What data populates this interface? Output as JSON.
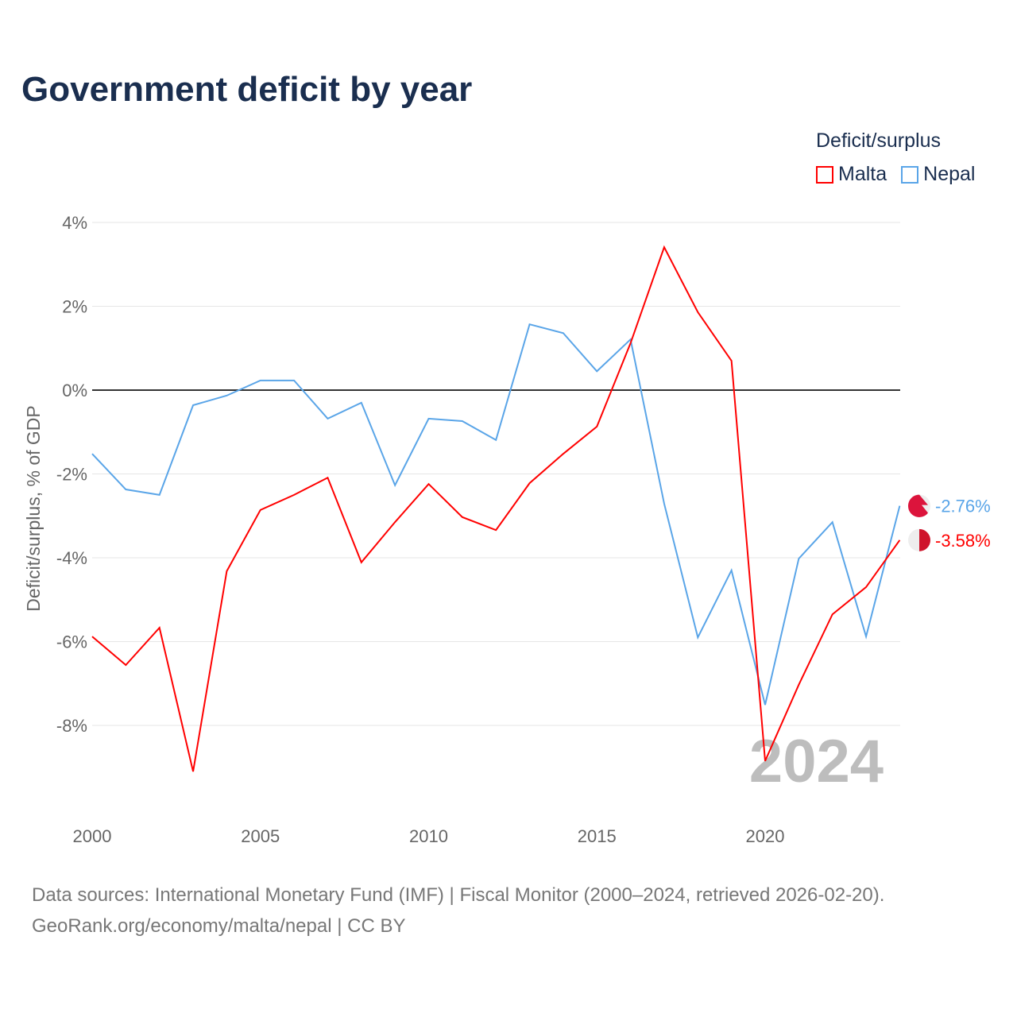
{
  "title": "Government deficit by year",
  "legend": {
    "title": "Deficit/surplus",
    "items": [
      {
        "name": "Malta",
        "color": "#ff0000"
      },
      {
        "name": "Nepal",
        "color": "#5aa5e8"
      }
    ]
  },
  "footer": {
    "line1": "Data sources: International Monetary Fund (IMF) | Fiscal Monitor (2000–2024, retrieved 2026-02-20).",
    "line2": "GeoRank.org/economy/malta/nepal | CC BY"
  },
  "chart_data": {
    "type": "line",
    "title": "Government deficit by year",
    "xlabel": "",
    "ylabel": "Deficit/surplus, % of GDP",
    "year_watermark": "2024",
    "x": [
      2000,
      2001,
      2002,
      2003,
      2004,
      2005,
      2006,
      2007,
      2008,
      2009,
      2010,
      2011,
      2012,
      2013,
      2014,
      2015,
      2016,
      2017,
      2018,
      2019,
      2020,
      2021,
      2022,
      2023,
      2024
    ],
    "xticks": [
      2000,
      2005,
      2010,
      2015,
      2020
    ],
    "yticks": [
      4,
      2,
      0,
      -2,
      -4,
      -6,
      -8
    ],
    "ytick_labels": [
      "4%",
      "2%",
      "0%",
      "-2%",
      "-4%",
      "-6%",
      "-8%"
    ],
    "ylim": [
      -9.8,
      4.4
    ],
    "xlim": [
      2000,
      2024
    ],
    "grid": true,
    "legend_position": "top-right",
    "series": [
      {
        "name": "Malta",
        "color": "#ff0000",
        "end_label": "-3.58%",
        "values": [
          -5.88,
          -6.56,
          -5.67,
          -9.1,
          -4.32,
          -2.86,
          -2.5,
          -2.09,
          -4.11,
          -3.15,
          -2.24,
          -3.03,
          -3.34,
          -2.22,
          -1.52,
          -0.87,
          1.12,
          3.41,
          1.86,
          0.7,
          -8.85,
          -7.03,
          -5.35,
          -4.7,
          -3.58
        ]
      },
      {
        "name": "Nepal",
        "color": "#5aa5e8",
        "end_label": "-2.76%",
        "values": [
          -1.52,
          -2.37,
          -2.5,
          -0.36,
          -0.13,
          0.23,
          0.23,
          -0.68,
          -0.3,
          -2.27,
          -0.68,
          -0.74,
          -1.19,
          1.57,
          1.36,
          0.45,
          1.21,
          -2.71,
          -5.9,
          -4.3,
          -7.51,
          -4.02,
          -3.15,
          -5.88,
          -2.76
        ]
      }
    ]
  }
}
